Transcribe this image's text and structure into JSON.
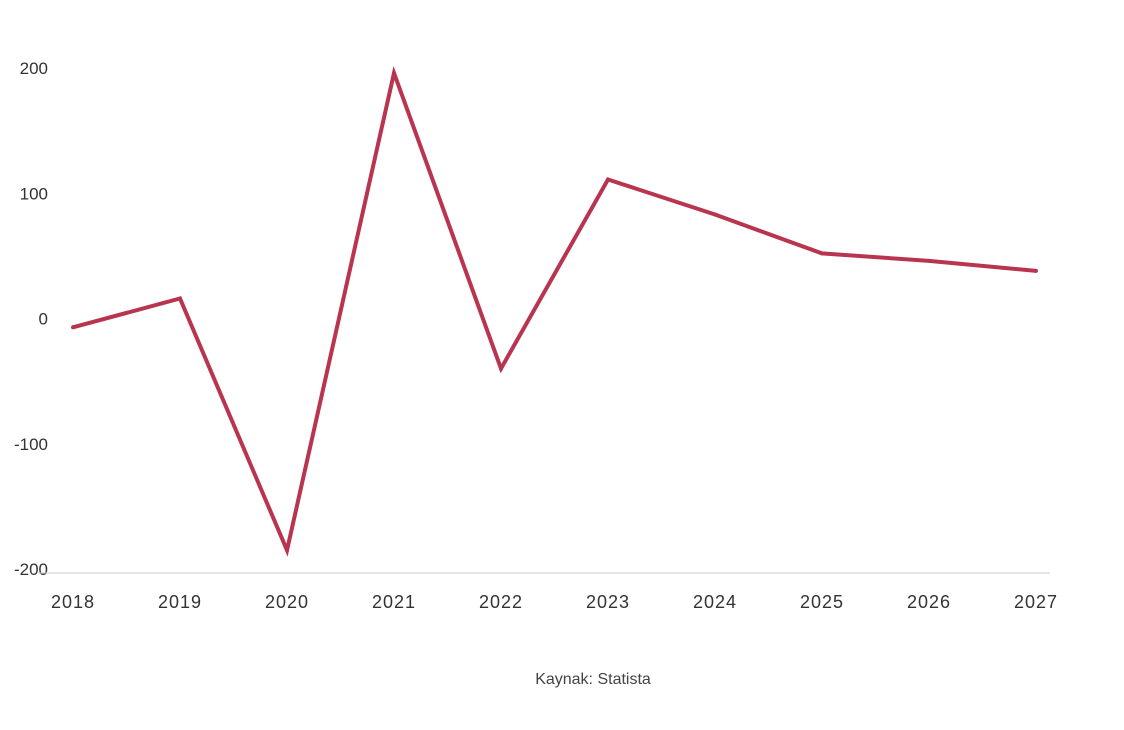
{
  "chart_data": {
    "type": "line",
    "x": [
      "2018",
      "2019",
      "2020",
      "2021",
      "2022",
      "2023",
      "2024",
      "2025",
      "2026",
      "2027"
    ],
    "series": [
      {
        "values": [
          -7,
          16,
          -185,
          196,
          -40,
          111,
          83,
          52,
          46,
          38
        ]
      }
    ],
    "ylim": [
      -200,
      200
    ],
    "yticks": [
      200,
      100,
      0,
      -100,
      -200
    ],
    "grid": false,
    "line_color": "#b8344f"
  },
  "source": "Kaynak: Statista"
}
